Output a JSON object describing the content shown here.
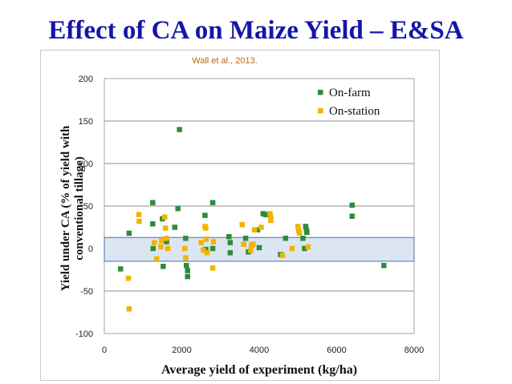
{
  "slide": {
    "title": "Effect of CA on Maize Yield – E&SA"
  },
  "chart_data": {
    "type": "scatter",
    "citation": "Wall et al., 2013.",
    "xlabel": "Average yield of experiment (kg/ha)",
    "ylabel_lines": [
      "Yield under CA (% of yield with",
      "conventional tillage)"
    ],
    "xlim": [
      0,
      8000
    ],
    "ylim": [
      -100,
      200
    ],
    "xticks": [
      "0",
      "2000",
      "4000",
      "6000",
      "8000"
    ],
    "yticks": [
      "200",
      "150",
      "100",
      "50",
      "0",
      "-50",
      "-100"
    ],
    "grid": true,
    "legend_position": "top-right",
    "band": {
      "y_from": -15,
      "y_to": 13
    },
    "series": [
      {
        "name": "On-farm",
        "color": "#2e8b3d",
        "points": [
          [
            420,
            -24
          ],
          [
            640,
            18
          ],
          [
            1250,
            54
          ],
          [
            1250,
            29
          ],
          [
            1260,
            0
          ],
          [
            1500,
            35
          ],
          [
            1520,
            -21
          ],
          [
            1610,
            8
          ],
          [
            1820,
            25
          ],
          [
            1900,
            47
          ],
          [
            1940,
            140
          ],
          [
            2100,
            12
          ],
          [
            2120,
            -20
          ],
          [
            2150,
            -26
          ],
          [
            2150,
            -33
          ],
          [
            2600,
            39
          ],
          [
            2620,
            -1
          ],
          [
            2800,
            54
          ],
          [
            2800,
            0
          ],
          [
            3220,
            14
          ],
          [
            3250,
            7
          ],
          [
            3250,
            -5
          ],
          [
            3650,
            12
          ],
          [
            3720,
            -4
          ],
          [
            3880,
            22
          ],
          [
            3960,
            22
          ],
          [
            4000,
            1
          ],
          [
            4100,
            41
          ],
          [
            4160,
            40
          ],
          [
            4200,
            40
          ],
          [
            4550,
            -7
          ],
          [
            4680,
            12
          ],
          [
            5130,
            12
          ],
          [
            5170,
            0
          ],
          [
            5200,
            26
          ],
          [
            5220,
            22
          ],
          [
            5230,
            19
          ],
          [
            6400,
            51
          ],
          [
            6400,
            38
          ],
          [
            7220,
            -20
          ]
        ]
      },
      {
        "name": "On-station",
        "color": "#f1b400",
        "points": [
          [
            620,
            -35
          ],
          [
            640,
            -71
          ],
          [
            890,
            40
          ],
          [
            900,
            32
          ],
          [
            1290,
            7
          ],
          [
            1350,
            -12
          ],
          [
            1460,
            2
          ],
          [
            1480,
            9
          ],
          [
            1560,
            37
          ],
          [
            1580,
            24
          ],
          [
            1600,
            12
          ],
          [
            1640,
            0
          ],
          [
            2080,
            0
          ],
          [
            2100,
            -11
          ],
          [
            2500,
            7
          ],
          [
            2560,
            -2
          ],
          [
            2600,
            26
          ],
          [
            2620,
            24
          ],
          [
            2630,
            11
          ],
          [
            2650,
            -5
          ],
          [
            2800,
            -23
          ],
          [
            2820,
            8
          ],
          [
            3560,
            28
          ],
          [
            3600,
            5
          ],
          [
            3780,
            -2
          ],
          [
            3800,
            4
          ],
          [
            3840,
            5
          ],
          [
            3880,
            22
          ],
          [
            4050,
            25
          ],
          [
            4280,
            41
          ],
          [
            4300,
            37
          ],
          [
            4300,
            33
          ],
          [
            4600,
            -8
          ],
          [
            4850,
            0
          ],
          [
            5000,
            26
          ],
          [
            5020,
            21
          ],
          [
            5040,
            18
          ],
          [
            5260,
            2
          ]
        ]
      }
    ]
  }
}
